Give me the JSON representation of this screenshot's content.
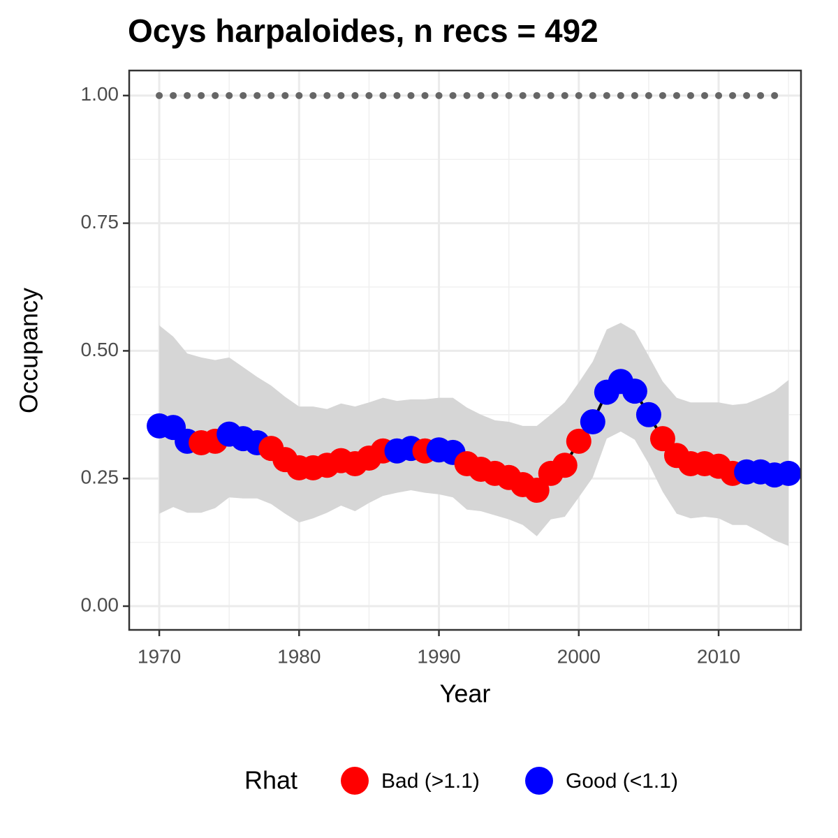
{
  "chart_data": {
    "type": "line",
    "title": "Ocys harpaloides, n recs = 492",
    "x_label": "Year",
    "y_label": "Occupancy",
    "x": [
      1970,
      1971,
      1972,
      1973,
      1974,
      1975,
      1976,
      1977,
      1978,
      1979,
      1980,
      1981,
      1982,
      1983,
      1984,
      1985,
      1986,
      1987,
      1988,
      1989,
      1990,
      1991,
      1992,
      1993,
      1994,
      1995,
      1996,
      1997,
      1998,
      1999,
      2000,
      2001,
      2002,
      2003,
      2004,
      2005,
      2006,
      2007,
      2008,
      2009,
      2010,
      2011,
      2012,
      2013,
      2014,
      2015
    ],
    "values": [
      0.353,
      0.35,
      0.323,
      0.32,
      0.323,
      0.337,
      0.328,
      0.32,
      0.309,
      0.287,
      0.271,
      0.271,
      0.276,
      0.285,
      0.279,
      0.29,
      0.304,
      0.304,
      0.309,
      0.304,
      0.306,
      0.301,
      0.279,
      0.268,
      0.26,
      0.252,
      0.238,
      0.227,
      0.26,
      0.276,
      0.323,
      0.361,
      0.419,
      0.44,
      0.421,
      0.375,
      0.328,
      0.295,
      0.279,
      0.279,
      0.274,
      0.26,
      0.263,
      0.263,
      0.257,
      0.26
    ],
    "upper": [
      0.55,
      0.528,
      0.495,
      0.487,
      0.482,
      0.487,
      0.468,
      0.449,
      0.432,
      0.41,
      0.391,
      0.391,
      0.386,
      0.397,
      0.391,
      0.399,
      0.408,
      0.402,
      0.405,
      0.405,
      0.408,
      0.408,
      0.389,
      0.375,
      0.364,
      0.361,
      0.353,
      0.353,
      0.375,
      0.399,
      0.438,
      0.479,
      0.542,
      0.555,
      0.539,
      0.49,
      0.44,
      0.408,
      0.399,
      0.399,
      0.399,
      0.394,
      0.397,
      0.408,
      0.421,
      0.443
    ],
    "lower": [
      0.181,
      0.194,
      0.183,
      0.183,
      0.192,
      0.213,
      0.211,
      0.211,
      0.2,
      0.181,
      0.164,
      0.172,
      0.183,
      0.197,
      0.186,
      0.202,
      0.216,
      0.222,
      0.227,
      0.222,
      0.219,
      0.213,
      0.189,
      0.186,
      0.178,
      0.17,
      0.159,
      0.137,
      0.17,
      0.175,
      0.213,
      0.252,
      0.328,
      0.342,
      0.326,
      0.279,
      0.224,
      0.181,
      0.172,
      0.175,
      0.172,
      0.159,
      0.159,
      0.145,
      0.129,
      0.118
    ],
    "groups": [
      1,
      1,
      1,
      0,
      0,
      1,
      1,
      1,
      0,
      0,
      0,
      0,
      0,
      0,
      0,
      0,
      0,
      1,
      1,
      0,
      1,
      1,
      0,
      0,
      0,
      0,
      0,
      0,
      0,
      0,
      0,
      1,
      1,
      1,
      1,
      1,
      0,
      0,
      0,
      0,
      0,
      0,
      1,
      1,
      1,
      1
    ],
    "line_color": "#000000",
    "ribbon_color": "#d6d6d6",
    "reference": {
      "x": [
        1970,
        1971,
        1972,
        1973,
        1974,
        1975,
        1976,
        1977,
        1978,
        1979,
        1980,
        1981,
        1982,
        1983,
        1984,
        1985,
        1986,
        1987,
        1988,
        1989,
        1990,
        1991,
        1992,
        1993,
        1994,
        1995,
        1996,
        1997,
        1998,
        1999,
        2000,
        2001,
        2002,
        2003,
        2004,
        2005,
        2006,
        2007,
        2008,
        2009,
        2010,
        2011,
        2012,
        2013,
        2014
      ],
      "values": [
        1,
        1,
        1,
        1,
        1,
        1,
        1,
        1,
        1,
        1,
        1,
        1,
        1,
        1,
        1,
        1,
        1,
        1,
        1,
        1,
        1,
        1,
        1,
        1,
        1,
        1,
        1,
        1,
        1,
        1,
        1,
        1,
        1,
        1,
        1,
        1,
        1,
        1,
        1,
        1,
        1,
        1,
        1,
        1,
        1
      ],
      "color": "#666666"
    },
    "legend": {
      "title": "Rhat",
      "position": "bottom",
      "entries": [
        {
          "name": "Bad (>1.1)",
          "color": "#ff0000"
        },
        {
          "name": "Good (<1.1)",
          "color": "#0000ff"
        }
      ]
    },
    "xlim": [
      1967.85,
      2015.89
    ],
    "ylim": [
      -0.0465,
      1.049
    ],
    "xticks": [
      1970,
      1980,
      1990,
      2000,
      2010
    ],
    "yticks": [
      {
        "value": 0,
        "label": "0.00"
      },
      {
        "value": 0.25,
        "label": "0.25"
      },
      {
        "value": 0.5,
        "label": "0.50"
      },
      {
        "value": 0.75,
        "label": "0.75"
      },
      {
        "value": 1,
        "label": "1.00"
      }
    ],
    "xminor": [
      1975,
      1985,
      1995,
      2005,
      2015
    ],
    "yminor": [
      0.125,
      0.375,
      0.625,
      0.875
    ],
    "grid": true
  }
}
